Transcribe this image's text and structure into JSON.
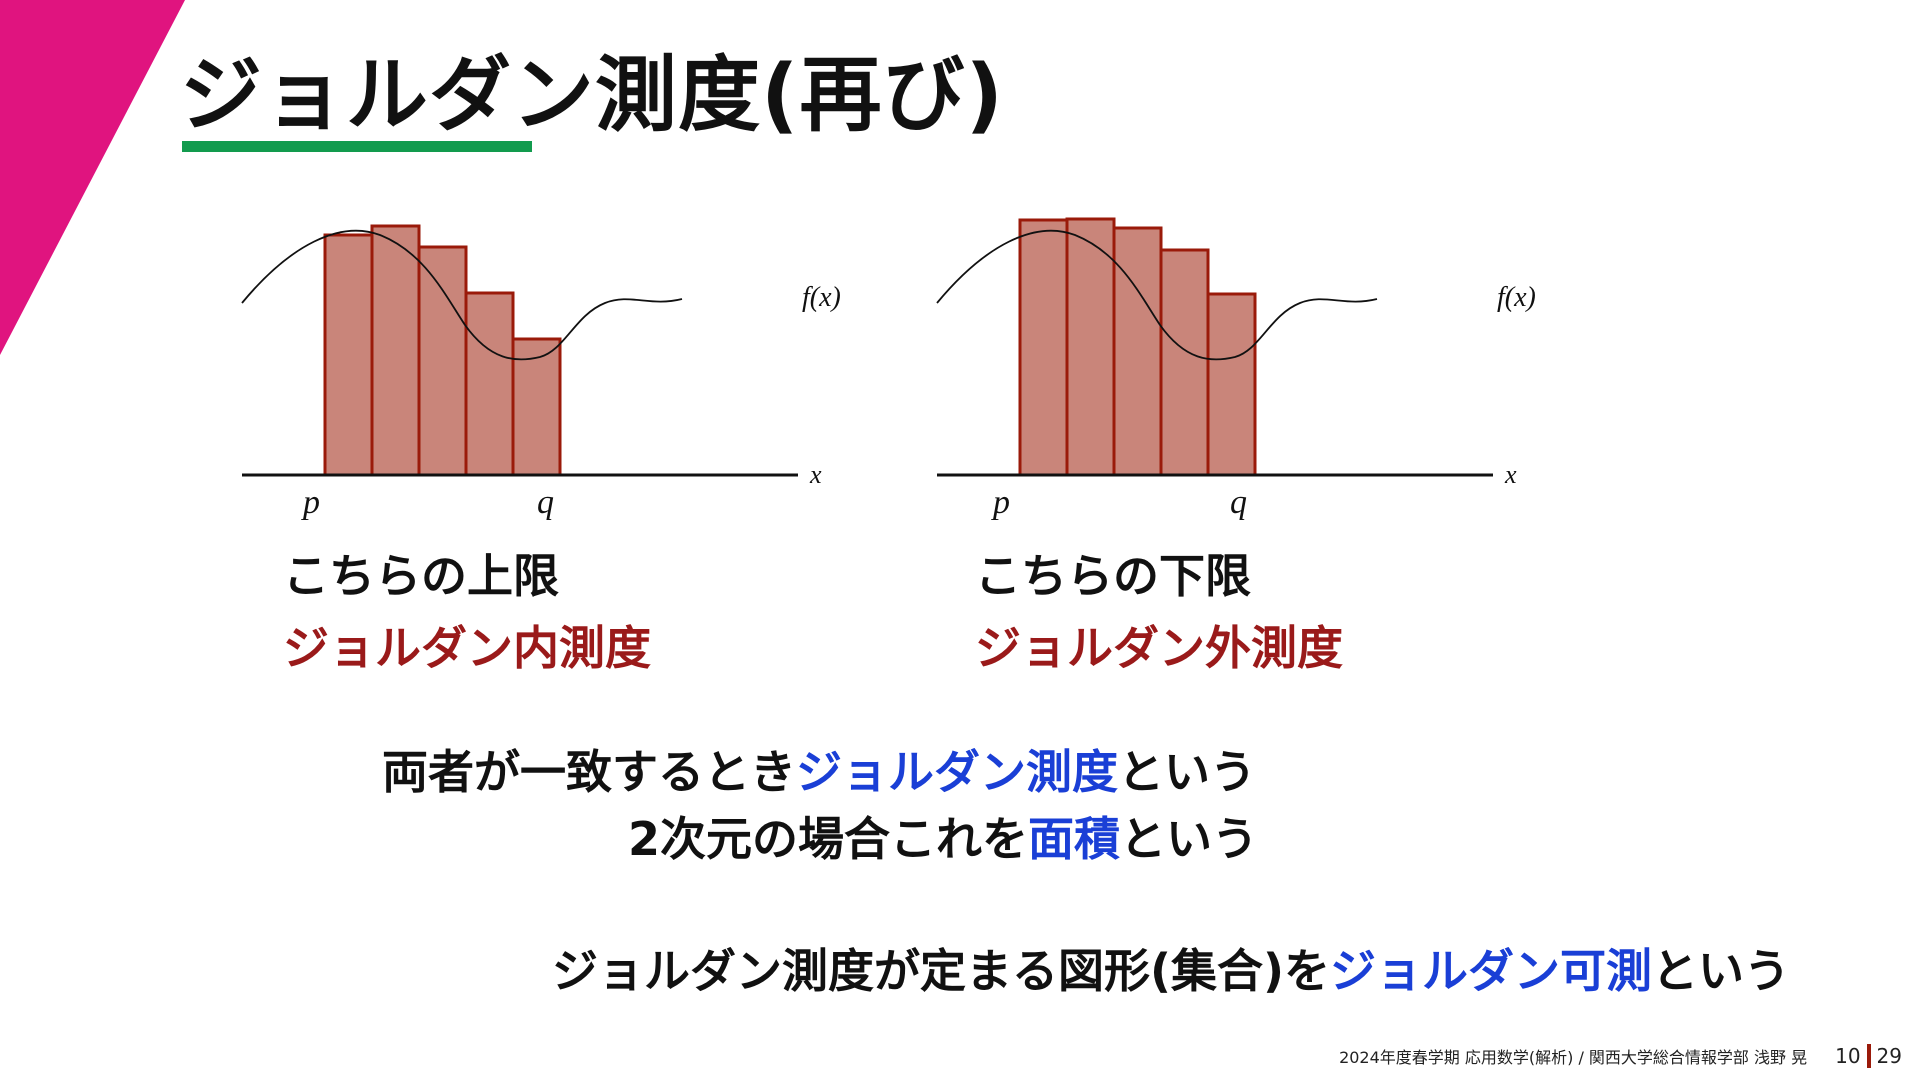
{
  "colors": {
    "accent_triangle": "#e0147f",
    "underline": "#129b4e",
    "bar_fill": "#c9857a",
    "bar_edge": "#9a1a0a",
    "highlight_blue": "#1a3fd6",
    "caption_red": "#9a1a1a",
    "page_separator": "#9a1a0a"
  },
  "slide": {
    "title": "ジョルダン測度(再び)"
  },
  "figures": [
    {
      "variant": "inner",
      "function_label": "f(x)",
      "x_axis_label": "x",
      "p_label": "p",
      "q_label": "q",
      "caption_line1": "こちらの上限",
      "caption_line2": "ジョルダン内測度"
    },
    {
      "variant": "outer",
      "function_label": "f(x)",
      "x_axis_label": "x",
      "p_label": "p",
      "q_label": "q",
      "caption_line1": "こちらの下限",
      "caption_line2": "ジョルダン外測度"
    }
  ],
  "statements": {
    "line1": {
      "pre": "両者が一致するとき",
      "highlight": "ジョルダン測度",
      "post": "という"
    },
    "line2": {
      "pre": "2次元の場合これを",
      "highlight": "面積",
      "post": "という"
    },
    "line3": {
      "pre": "ジョルダン測度が定まる図形(集合)を",
      "highlight": "ジョルダン可測",
      "post": "という"
    }
  },
  "footer": {
    "credit": "2024年度春学期 応用数学(解析) / 関西大学総合情報学部 浅野 晃",
    "page_current": "10",
    "page_total": "29"
  }
}
